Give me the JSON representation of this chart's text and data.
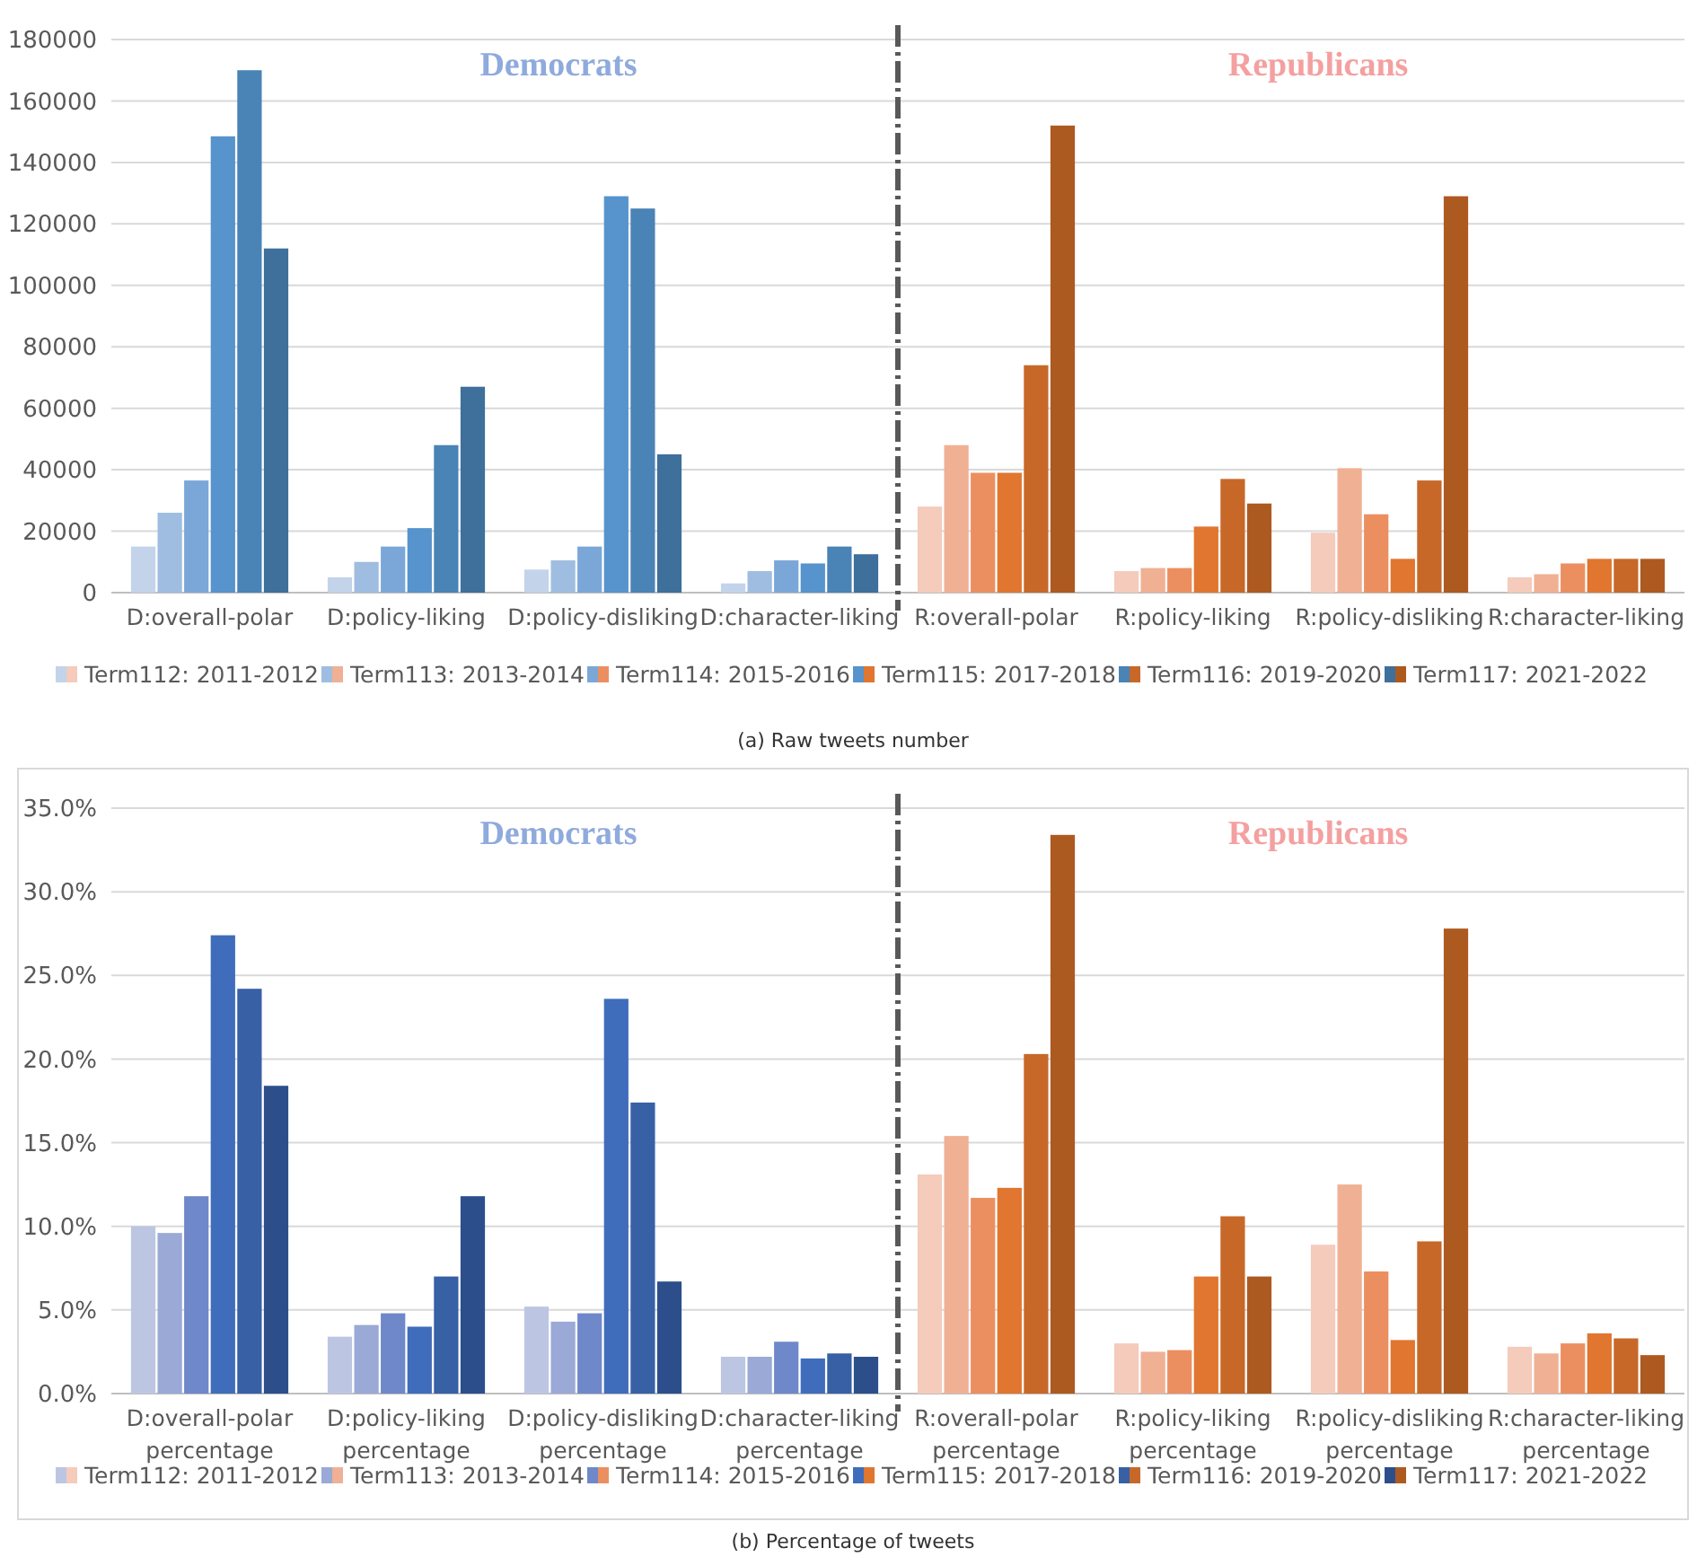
{
  "chart_data": [
    {
      "type": "bar",
      "categories": [
        "D:overall-polar",
        "D:policy-liking",
        "D:policy-disliking",
        "D:character-liking",
        "R:overall-polar",
        "R:policy-liking",
        "R:policy-disliking",
        "R:character-liking"
      ],
      "series": [
        {
          "name": "Term112: 2011-2012",
          "colors": [
            "#c3d3ea",
            "#c3d3ea",
            "#c3d3ea",
            "#c3d3ea",
            "#f5cbbc",
            "#f5cbbc",
            "#f5cbbc",
            "#f5cbbc"
          ],
          "values": [
            15000,
            5000,
            7500,
            3000,
            28000,
            7000,
            19500,
            5000
          ]
        },
        {
          "name": "Term113: 2013-2014",
          "colors": [
            "#9fbde0",
            "#9fbde0",
            "#9fbde0",
            "#9fbde0",
            "#f0b094",
            "#f0b094",
            "#f0b094",
            "#f0b094"
          ],
          "values": [
            26000,
            10000,
            10500,
            7000,
            48000,
            8000,
            40500,
            6000
          ]
        },
        {
          "name": "Term114: 2015-2016",
          "colors": [
            "#7ba7d8",
            "#7ba7d8",
            "#7ba7d8",
            "#7ba7d8",
            "#ec8f60",
            "#ec8f60",
            "#ec8f60",
            "#ec8f60"
          ],
          "values": [
            36500,
            15000,
            15000,
            10500,
            39000,
            8000,
            25500,
            9500
          ]
        },
        {
          "name": "Term115: 2017-2018",
          "colors": [
            "#5793cc",
            "#5793cc",
            "#5793cc",
            "#5793cc",
            "#e0762f",
            "#e0762f",
            "#e0762f",
            "#e0762f"
          ],
          "values": [
            148500,
            21000,
            129000,
            9500,
            39000,
            21500,
            11000,
            11000
          ]
        },
        {
          "name": "Term116: 2019-2020",
          "colors": [
            "#4a83b5",
            "#4a83b5",
            "#4a83b5",
            "#4a83b5",
            "#c76829",
            "#c76829",
            "#c76829",
            "#c76829"
          ],
          "values": [
            170000,
            48000,
            125000,
            15000,
            74000,
            37000,
            36500,
            11000
          ]
        },
        {
          "name": "Term117: 2021-2022",
          "colors": [
            "#3f6f9b",
            "#3f6f9b",
            "#3f6f9b",
            "#3f6f9b",
            "#ad5a21",
            "#ad5a21",
            "#ad5a21",
            "#ad5a21"
          ],
          "values": [
            112000,
            67000,
            45000,
            12500,
            152000,
            29000,
            129000,
            11000
          ]
        }
      ],
      "ylim": [
        0,
        180000
      ],
      "yticks": [
        0,
        20000,
        40000,
        60000,
        80000,
        100000,
        120000,
        140000,
        160000,
        180000
      ],
      "grid": "y",
      "legend": "bottom",
      "annotations": [
        "Democrats",
        "Republicans",
        "(a) Raw tweets number"
      ]
    },
    {
      "type": "bar",
      "categories": [
        "D:overall-polar percentage",
        "D:policy-liking percentage",
        "D:policy-disliking percentage",
        "D:character-liking percentage",
        "R:overall-polar percentage",
        "R:policy-liking percentage",
        "R:policy-disliking percentage",
        "R:character-liking percentage"
      ],
      "series": [
        {
          "name": "Term112: 2011-2012",
          "colors": [
            "#bcc6e3",
            "#bcc6e3",
            "#bcc6e3",
            "#bcc6e3",
            "#f5cbbc",
            "#f5cbbc",
            "#f5cbbc",
            "#f5cbbc"
          ],
          "values": [
            10.0,
            3.4,
            5.2,
            2.2,
            13.1,
            3.0,
            8.9,
            2.8
          ]
        },
        {
          "name": "Term113: 2013-2014",
          "colors": [
            "#9aa9d6",
            "#9aa9d6",
            "#9aa9d6",
            "#9aa9d6",
            "#f0b094",
            "#f0b094",
            "#f0b094",
            "#f0b094"
          ],
          "values": [
            9.6,
            4.1,
            4.3,
            2.2,
            15.4,
            2.5,
            12.5,
            2.4
          ]
        },
        {
          "name": "Term114: 2015-2016",
          "colors": [
            "#6f88c9",
            "#6f88c9",
            "#6f88c9",
            "#6f88c9",
            "#ec8f60",
            "#ec8f60",
            "#ec8f60",
            "#ec8f60"
          ],
          "values": [
            11.8,
            4.8,
            4.8,
            3.1,
            11.7,
            2.6,
            7.3,
            3.0
          ]
        },
        {
          "name": "Term115: 2017-2018",
          "colors": [
            "#3f6dbb",
            "#3f6dbb",
            "#3f6dbb",
            "#3f6dbb",
            "#e0762f",
            "#e0762f",
            "#e0762f",
            "#e0762f"
          ],
          "values": [
            27.4,
            4.0,
            23.6,
            2.1,
            12.3,
            7.0,
            3.2,
            3.6
          ]
        },
        {
          "name": "Term116: 2019-2020",
          "colors": [
            "#3760a5",
            "#3760a5",
            "#3760a5",
            "#3760a5",
            "#c76829",
            "#c76829",
            "#c76829",
            "#c76829"
          ],
          "values": [
            24.2,
            7.0,
            17.4,
            2.4,
            20.3,
            10.6,
            9.1,
            3.3
          ]
        },
        {
          "name": "Term117: 2021-2022",
          "colors": [
            "#2c4f8c",
            "#2c4f8c",
            "#2c4f8c",
            "#2c4f8c",
            "#ad5a21",
            "#ad5a21",
            "#ad5a21",
            "#ad5a21"
          ],
          "values": [
            18.4,
            11.8,
            6.7,
            2.2,
            33.4,
            7.0,
            27.8,
            2.3
          ]
        }
      ],
      "ylim": [
        0,
        35
      ],
      "yticks": [
        {
          "value": 0,
          "label": "0.0%"
        },
        {
          "value": 5,
          "label": "5.0%"
        },
        {
          "value": 10,
          "label": "10.0%"
        },
        {
          "value": 15,
          "label": "15.0%"
        },
        {
          "value": 20,
          "label": "20.0%"
        },
        {
          "value": 25,
          "label": "25.0%"
        },
        {
          "value": 30,
          "label": "30.0%"
        },
        {
          "value": 35,
          "label": "35.0%"
        }
      ],
      "grid": "y",
      "legend": "bottom",
      "annotations": [
        "Democrats",
        "Republicans",
        "(b) Percentage of tweets"
      ]
    }
  ]
}
